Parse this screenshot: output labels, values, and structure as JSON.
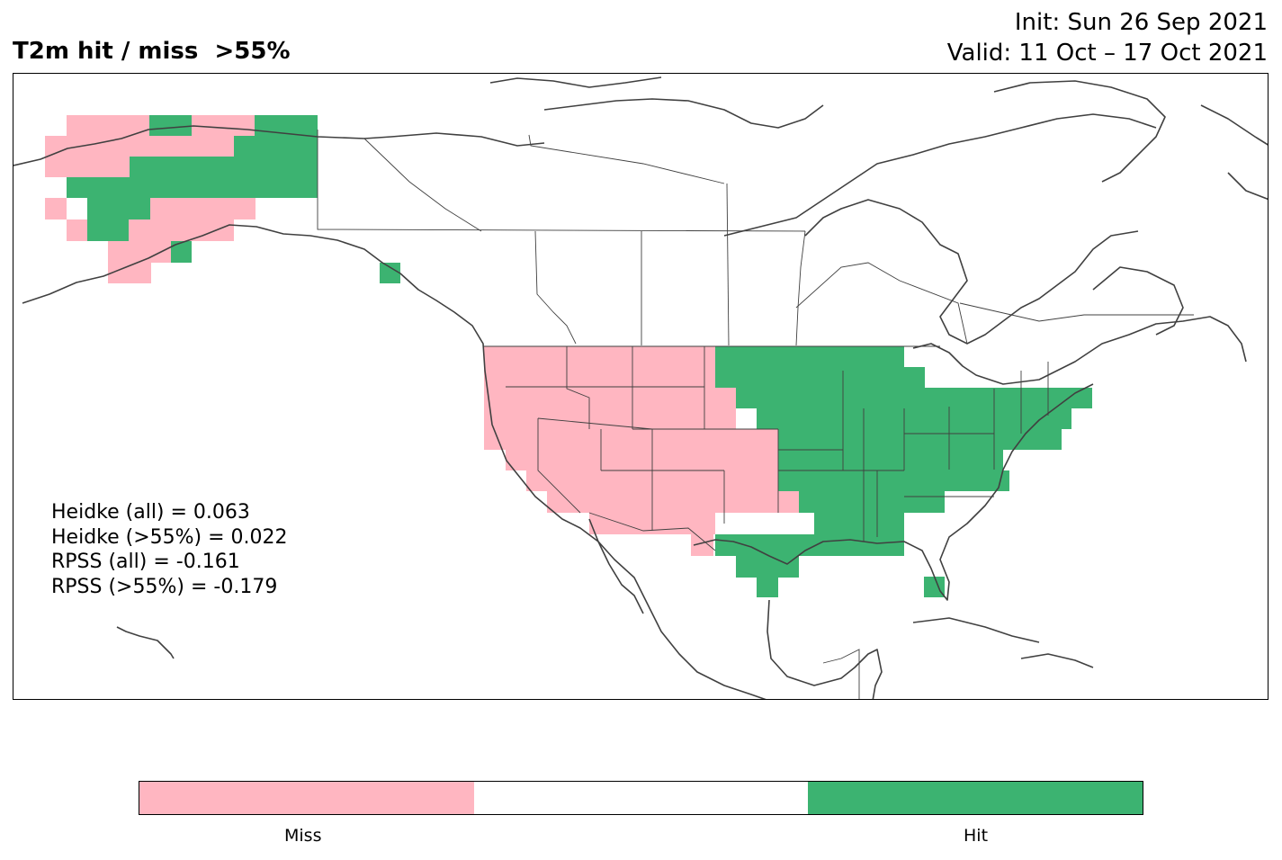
{
  "title": "T2m hit / miss  >55%",
  "init_label": "Init: Sun 26 Sep 2021",
  "valid_label": "Valid: 11 Oct – 17 Oct 2021",
  "stats": [
    "Heidke (all) = 0.063",
    "Heidke (>55%) = 0.022",
    "RPSS (all) = -0.161",
    "RPSS (>55%) = -0.179"
  ],
  "legend": {
    "categories": [
      "Miss",
      "",
      "Hit"
    ],
    "colors": [
      "#ffb6c1",
      "#ffffff",
      "#3cb371"
    ],
    "labels": [
      "Miss",
      "Hit"
    ]
  },
  "colors": {
    "miss": "#ffb6c1",
    "hit": "#3cb371",
    "coastline": "#404040",
    "border": "#404040"
  }
}
